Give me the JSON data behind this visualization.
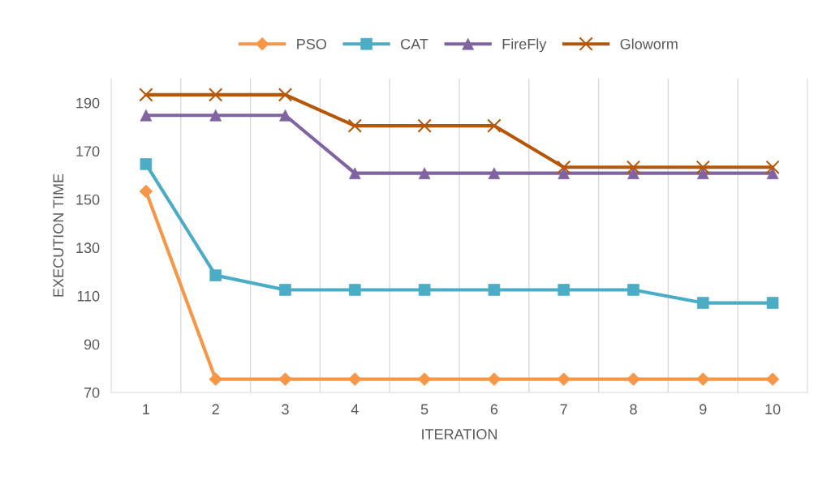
{
  "chart_data": {
    "type": "line",
    "xlabel": "ITERATION",
    "ylabel": "EXECUTION TIME",
    "categories": [
      "1",
      "2",
      "3",
      "4",
      "5",
      "6",
      "7",
      "8",
      "9",
      "10"
    ],
    "series": [
      {
        "name": "PSO",
        "color": "#f79646",
        "marker": "diamond",
        "values": [
          153.3,
          75.5,
          75.5,
          75.5,
          75.5,
          75.5,
          75.5,
          75.5,
          75.5,
          75.5
        ]
      },
      {
        "name": "CAT",
        "color": "#4bacc6",
        "marker": "square",
        "values": [
          164.6,
          118.5,
          112.5,
          112.5,
          112.5,
          112.5,
          112.5,
          112.5,
          107.1,
          107.1
        ]
      },
      {
        "name": "FireFly",
        "color": "#8064a2",
        "marker": "triangle",
        "values": [
          184.8,
          184.8,
          184.8,
          160.8,
          160.8,
          160.8,
          160.8,
          160.8,
          160.8,
          160.8
        ]
      },
      {
        "name": "Gloworm",
        "color": "#b65708",
        "marker": "cross",
        "values": [
          193.3,
          193.3,
          193.3,
          180.5,
          180.5,
          180.5,
          163.3,
          163.3,
          163.3,
          163.3
        ]
      }
    ],
    "ylim": [
      70,
      200
    ],
    "yticks": [
      70,
      90,
      110,
      130,
      150,
      170,
      190
    ],
    "grid": "x",
    "legend": "top",
    "line_style": "solid"
  }
}
